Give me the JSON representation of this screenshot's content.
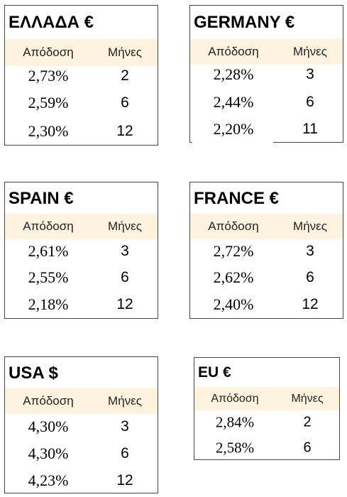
{
  "column_headers": {
    "yield": "Απόδοση",
    "months": "Μήνες"
  },
  "cards": [
    {
      "title": "ΕΛΛΑΔΑ €",
      "rows": [
        {
          "yield": "2,73%",
          "months": "2"
        },
        {
          "yield": "2,59%",
          "months": "6"
        },
        {
          "yield": "2,30%",
          "months": "12"
        }
      ]
    },
    {
      "title": "GERMANY €",
      "rows": [
        {
          "yield": "2,28%",
          "months": "3"
        },
        {
          "yield": "2,44%",
          "months": "6"
        },
        {
          "yield": "2,20%",
          "months": "11"
        }
      ]
    },
    {
      "title": "SPAIN €",
      "rows": [
        {
          "yield": "2,61%",
          "months": "3"
        },
        {
          "yield": "2,55%",
          "months": "6"
        },
        {
          "yield": "2,18%",
          "months": "12"
        }
      ]
    },
    {
      "title": "FRANCE €",
      "rows": [
        {
          "yield": "2,72%",
          "months": "3"
        },
        {
          "yield": "2,62%",
          "months": "6"
        },
        {
          "yield": "2,40%",
          "months": "12"
        }
      ]
    },
    {
      "title": "USA $",
      "rows": [
        {
          "yield": "4,30%",
          "months": "3"
        },
        {
          "yield": "4,30%",
          "months": "6"
        },
        {
          "yield": "4,23%",
          "months": "12"
        }
      ]
    },
    {
      "title": "EU €",
      "rows": [
        {
          "yield": "2,84%",
          "months": "2"
        },
        {
          "yield": "2,58%",
          "months": "6"
        }
      ]
    }
  ]
}
